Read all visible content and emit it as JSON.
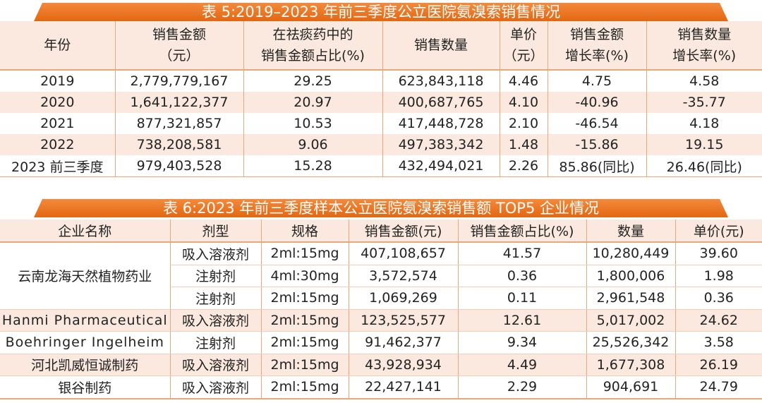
{
  "table5": {
    "title": "表 5:2019–2023 年前三季度公立医院氨溴索销售情况",
    "headers": [
      [
        "年份",
        ""
      ],
      [
        "销售金额",
        "（元）"
      ],
      [
        "在祛痰药中的",
        "销售金额占比(%)"
      ],
      [
        "销售数量",
        ""
      ],
      [
        "单价",
        "（元）"
      ],
      [
        "销售金额",
        "增长率(%)"
      ],
      [
        "销售数量",
        "增长率(%)"
      ]
    ],
    "rows": [
      [
        "2019",
        "2,779,779,167",
        "29.25",
        "623,843,118",
        "4.46",
        "4.75",
        "4.58"
      ],
      [
        "2020",
        "1,641,122,377",
        "20.97",
        "400,687,765",
        "4.10",
        "-40.96",
        "-35.77"
      ],
      [
        "2021",
        "877,321,857",
        "10.53",
        "417,448,728",
        "2.10",
        "-46.54",
        "4.18"
      ],
      [
        "2022",
        "738,208,581",
        "9.06",
        "497,383,342",
        "1.48",
        "-15.86",
        "19.15"
      ],
      [
        "2023 前三季度",
        "979,403,528",
        "15.28",
        "432,494,021",
        "2.26",
        "85.86(同比)",
        "26.46(同比)"
      ]
    ]
  },
  "table6": {
    "title": "表 6:2023 年前三季度样本公立医院氨溴索销售额 TOP5 企业情况",
    "headers": [
      "企业名称",
      "剂型",
      "规格",
      "销售金额(元)",
      "销售金额占比(%)",
      "数量",
      "单价(元)"
    ],
    "group": {
      "company": "云南龙海天然植物药业",
      "rows": [
        [
          "吸入溶液剂",
          "2ml:15mg",
          "407,108,657",
          "41.57",
          "10,280,449",
          "39.60"
        ],
        [
          "注射剂",
          "4ml:30mg",
          "3,572,574",
          "0.36",
          "1,800,006",
          "1.98"
        ],
        [
          "注射剂",
          "2ml:15mg",
          "1,069,269",
          "0.11",
          "2,961,548",
          "0.36"
        ]
      ]
    },
    "rows": [
      [
        "Hanmi Pharmaceutical",
        "吸入溶液剂",
        "2ml:15mg",
        "123,525,577",
        "12.61",
        "5,017,002",
        "24.62"
      ],
      [
        "Boehringer Ingelheim",
        "注射剂",
        "2ml:15mg",
        "91,462,377",
        "9.34",
        "25,526,342",
        "3.58"
      ],
      [
        "河北凯威恒诚制药",
        "吸入溶液剂",
        "2ml:15mg",
        "43,928,934",
        "4.49",
        "1,677,308",
        "26.19"
      ],
      [
        "银谷制药",
        "吸入溶液剂",
        "2ml:15mg",
        "22,427,141",
        "2.29",
        "904,691",
        "24.79"
      ]
    ]
  }
}
